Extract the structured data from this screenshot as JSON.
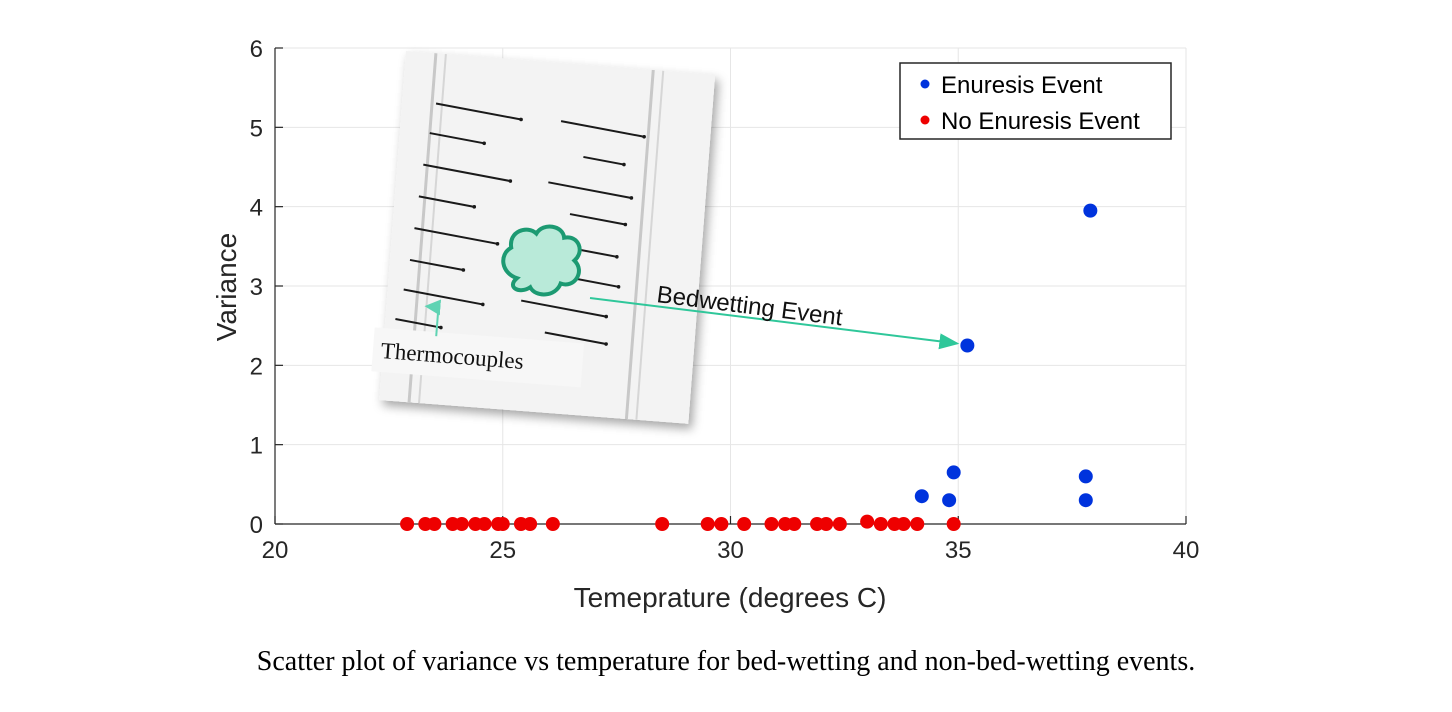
{
  "chart_data": {
    "type": "scatter",
    "xlabel": "Temeprature (degrees C)",
    "ylabel": "Variance",
    "xlim": [
      20,
      40
    ],
    "ylim": [
      0,
      6
    ],
    "xticks": [
      20,
      25,
      30,
      35,
      40
    ],
    "yticks": [
      0,
      1,
      2,
      3,
      4,
      5,
      6
    ],
    "grid": true,
    "legend_position": "top-right",
    "series": [
      {
        "name": "Enuresis Event",
        "color": "#0033dd",
        "points": [
          {
            "x": 34.2,
            "y": 0.35
          },
          {
            "x": 34.8,
            "y": 0.3
          },
          {
            "x": 34.9,
            "y": 0.65
          },
          {
            "x": 35.2,
            "y": 2.25
          },
          {
            "x": 37.8,
            "y": 0.6
          },
          {
            "x": 37.8,
            "y": 0.3
          },
          {
            "x": 37.9,
            "y": 3.95
          }
        ]
      },
      {
        "name": "No Enuresis Event",
        "color": "#ee0000",
        "points": [
          {
            "x": 22.9,
            "y": 0
          },
          {
            "x": 23.3,
            "y": 0
          },
          {
            "x": 23.5,
            "y": 0
          },
          {
            "x": 23.9,
            "y": 0
          },
          {
            "x": 24.1,
            "y": 0
          },
          {
            "x": 24.4,
            "y": 0
          },
          {
            "x": 24.6,
            "y": 0
          },
          {
            "x": 24.9,
            "y": 0
          },
          {
            "x": 25.0,
            "y": 0
          },
          {
            "x": 25.4,
            "y": 0
          },
          {
            "x": 25.6,
            "y": 0
          },
          {
            "x": 26.1,
            "y": 0
          },
          {
            "x": 28.5,
            "y": 0
          },
          {
            "x": 29.5,
            "y": 0
          },
          {
            "x": 29.8,
            "y": 0
          },
          {
            "x": 30.3,
            "y": 0
          },
          {
            "x": 30.9,
            "y": 0
          },
          {
            "x": 31.2,
            "y": 0
          },
          {
            "x": 31.4,
            "y": 0
          },
          {
            "x": 31.9,
            "y": 0
          },
          {
            "x": 32.1,
            "y": 0
          },
          {
            "x": 32.4,
            "y": 0
          },
          {
            "x": 33.0,
            "y": 0.03
          },
          {
            "x": 33.3,
            "y": 0
          },
          {
            "x": 33.6,
            "y": 0
          },
          {
            "x": 33.8,
            "y": 0
          },
          {
            "x": 34.1,
            "y": 0
          },
          {
            "x": 34.9,
            "y": 0
          }
        ]
      }
    ],
    "annotations": [
      {
        "text": "Bedwetting Event",
        "target": {
          "x": 35.2,
          "y": 2.25
        }
      },
      {
        "text": "Thermocouples"
      }
    ]
  },
  "caption": "Scatter plot of variance vs temperature for bed-wetting and non-bed-wetting events."
}
